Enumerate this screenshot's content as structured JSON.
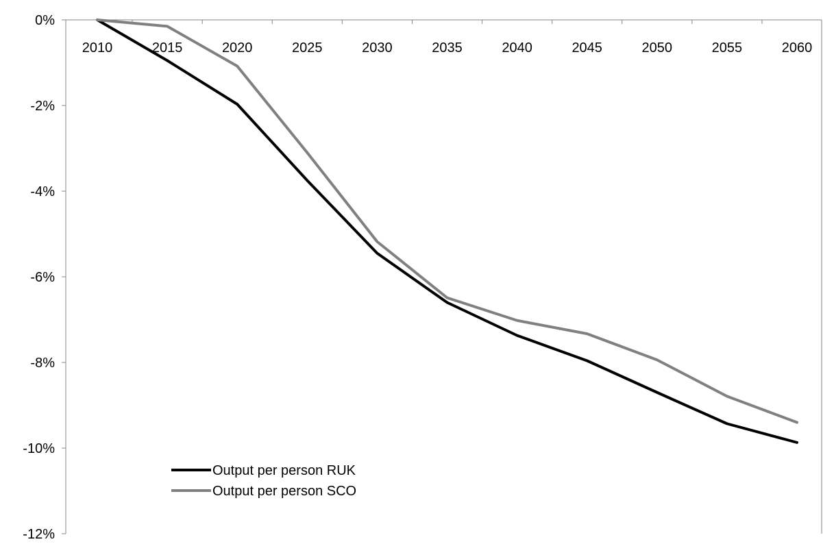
{
  "chart_data": {
    "type": "line",
    "title": "",
    "xlabel": "",
    "ylabel": "",
    "x": [
      2010,
      2015,
      2020,
      2025,
      2030,
      2035,
      2040,
      2045,
      2050,
      2055,
      2060
    ],
    "x_tick_labels": [
      "2010",
      "2015",
      "2020",
      "2025",
      "2030",
      "2035",
      "2040",
      "2045",
      "2050",
      "2055",
      "2060"
    ],
    "ylim": [
      -12,
      0
    ],
    "y_ticks": [
      0,
      -2,
      -4,
      -6,
      -8,
      -10,
      -12
    ],
    "y_tick_labels": [
      "0%",
      "-2%",
      "-4%",
      "-6%",
      "-8%",
      "-10%",
      "-12%"
    ],
    "grid": false,
    "legend_position": "bottom-left",
    "series": [
      {
        "name": "Output per person RUK",
        "color": "#000000",
        "values": [
          0,
          -0.95,
          -1.97,
          -3.75,
          -5.45,
          -6.6,
          -7.37,
          -7.96,
          -8.7,
          -9.43,
          -9.87
        ]
      },
      {
        "name": "Output per person SCO",
        "color": "#808080",
        "values": [
          0,
          -0.15,
          -1.08,
          -3.1,
          -5.18,
          -6.49,
          -7.02,
          -7.33,
          -7.94,
          -8.79,
          -9.4
        ]
      }
    ]
  }
}
